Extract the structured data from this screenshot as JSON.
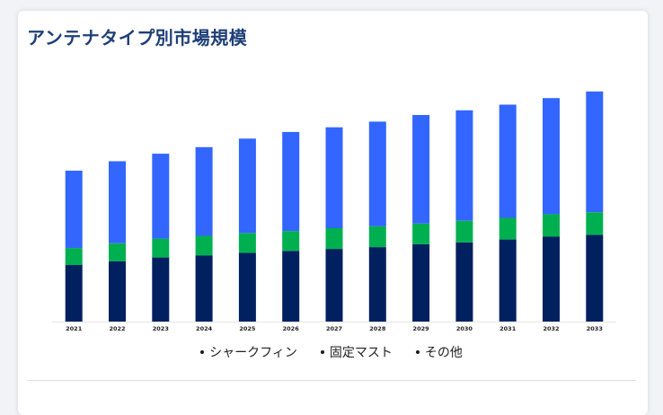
{
  "title": "アンテナタイプ別市場規模",
  "colors": {
    "title": "#1f3f77",
    "shark_fin": "#3366ff",
    "fixed_mast": "#00b050",
    "other": "#002060"
  },
  "chart_data": {
    "type": "bar",
    "stacked": true,
    "title": "アンテナタイプ別市場規模",
    "xlabel": "",
    "ylabel": "",
    "categories": [
      "2021",
      "2022",
      "2023",
      "2024",
      "2025",
      "2026",
      "2027",
      "2028",
      "2029",
      "2030",
      "2031",
      "2032",
      "2033"
    ],
    "series": [
      {
        "name": "その他",
        "color": "#002060",
        "values": [
          3.0,
          3.2,
          3.4,
          3.5,
          3.65,
          3.75,
          3.85,
          3.95,
          4.1,
          4.2,
          4.35,
          4.5,
          4.6
        ]
      },
      {
        "name": "固定マスト",
        "color": "#00b050",
        "values": [
          0.9,
          0.95,
          1.0,
          1.05,
          1.05,
          1.05,
          1.1,
          1.1,
          1.1,
          1.15,
          1.15,
          1.2,
          1.2
        ]
      },
      {
        "name": "シャークフィン",
        "color": "#3366ff",
        "values": [
          4.1,
          4.35,
          4.5,
          4.7,
          5.0,
          5.25,
          5.35,
          5.55,
          5.75,
          5.85,
          6.0,
          6.15,
          6.4
        ]
      }
    ],
    "ylim": [
      0,
      13
    ],
    "grid": false,
    "legend": {
      "position": "bottom",
      "items": [
        "シャークフィン",
        "固定マスト",
        "その他"
      ]
    }
  }
}
